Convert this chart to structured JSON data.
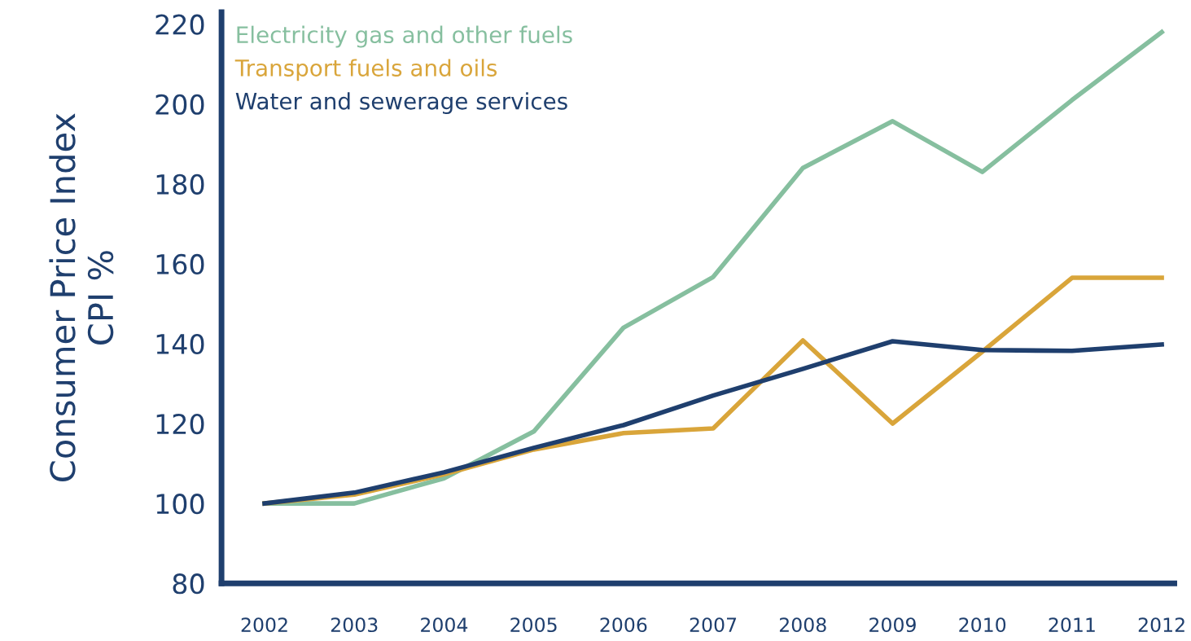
{
  "chart_data": {
    "type": "line",
    "ylabel": "Consumer Price Index\nCPI %",
    "categories": [
      "2002",
      "2003",
      "2004",
      "2005",
      "2006",
      "2007",
      "2008",
      "2009",
      "2010",
      "2011",
      "2012"
    ],
    "series": [
      {
        "name": "Electricity gas and other fuels",
        "color": "#86bf9f",
        "values": [
          100,
          100,
          106.3,
          118,
          144,
          156.7,
          184,
          195.7,
          183,
          201,
          218
        ]
      },
      {
        "name": "Transport fuels and oils",
        "color": "#d9a53a",
        "values": [
          100,
          102.2,
          107.3,
          113.5,
          117.6,
          118.8,
          140.8,
          120,
          138,
          156.5,
          156.5
        ]
      },
      {
        "name": "Water and sewerage services",
        "color": "#1f3f6e",
        "values": [
          100,
          102.7,
          107.8,
          113.9,
          119.6,
          127,
          133.7,
          140.6,
          138.4,
          138.2,
          139.8
        ]
      }
    ],
    "ylim": [
      80,
      223
    ],
    "yticks": [
      80,
      100,
      120,
      140,
      160,
      180,
      200,
      220
    ],
    "grid": false,
    "legend": "top left",
    "marker": "none",
    "line_style": "solid"
  }
}
